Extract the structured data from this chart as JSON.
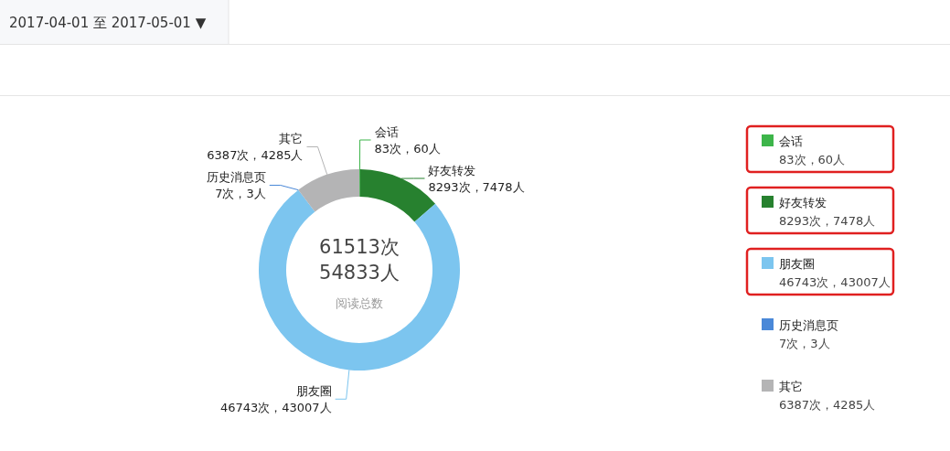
{
  "chart_data": {
    "type": "donut",
    "categories": [
      "会话",
      "好友转发",
      "朋友圈",
      "历史消息页",
      "其它"
    ],
    "values": [
      83,
      8293,
      46743,
      7,
      6387
    ],
    "colors": [
      "#3db54a",
      "#27812f",
      "#7cc5ef",
      "#4a88d8",
      "#b4b4b5"
    ],
    "value_labels": [
      "83次，60人",
      "8293次，7478人",
      "46743次，43007人",
      "7次，3人",
      "6387次，4285人"
    ],
    "annotations": [
      "2017-04-01 至 2017-05-01 ▼",
      "61513次",
      "54833人",
      "阅读总数"
    ],
    "legend": "right"
  }
}
